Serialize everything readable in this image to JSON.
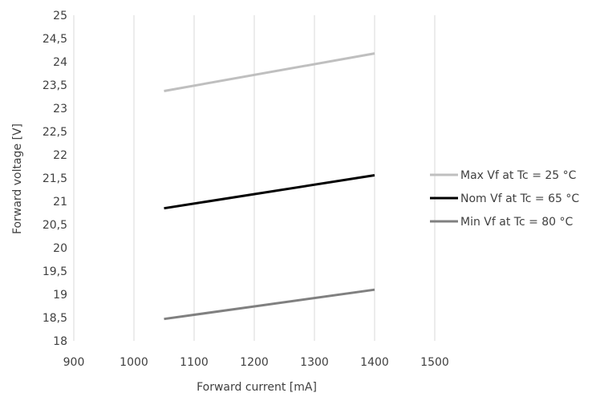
{
  "chart_data": {
    "type": "line",
    "title": "",
    "xlabel": "Forward current [mA]",
    "ylabel": "Forward voltage [V]",
    "xlim": [
      900,
      1500
    ],
    "ylim": [
      18,
      25
    ],
    "x_ticks": [
      900,
      1000,
      1100,
      1200,
      1300,
      1400,
      1500
    ],
    "x_tick_labels": [
      "900",
      "1000",
      "1100",
      "1200",
      "1300",
      "1400",
      "1500"
    ],
    "y_ticks": [
      18,
      18.5,
      19,
      19.5,
      20,
      20.5,
      21,
      21.5,
      22,
      22.5,
      23,
      23.5,
      24,
      24.5,
      25
    ],
    "y_tick_labels": [
      "18",
      "18,5",
      "19",
      "19,5",
      "20",
      "20,5",
      "21",
      "21,5",
      "22",
      "22,5",
      "23",
      "23,5",
      "24",
      "24,5",
      "25"
    ],
    "grid": "vertical",
    "legend": "right",
    "series": [
      {
        "name": "Max Vf at Tc = 25 °C",
        "color": "#bfbfbf",
        "x": [
          1050,
          1400
        ],
        "y": [
          23.37,
          24.18
        ]
      },
      {
        "name": "Nom Vf at Tc = 65 °C",
        "color": "#000000",
        "x": [
          1050,
          1400
        ],
        "y": [
          20.85,
          21.56
        ]
      },
      {
        "name": "Min Vf at Tc = 80 °C",
        "color": "#808080",
        "x": [
          1050,
          1400
        ],
        "y": [
          18.47,
          19.1
        ]
      }
    ]
  }
}
